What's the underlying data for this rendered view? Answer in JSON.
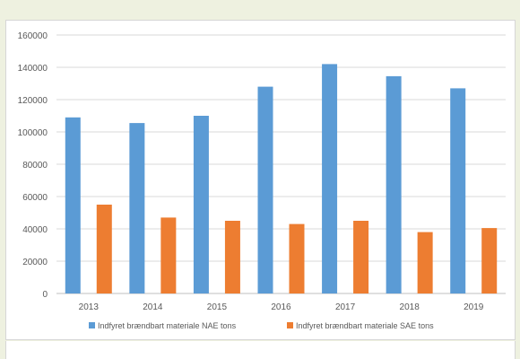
{
  "chart_data": {
    "type": "bar",
    "categories": [
      "2013",
      "2014",
      "2015",
      "2016",
      "2017",
      "2018",
      "2019"
    ],
    "series": [
      {
        "name": "Indfyret brændbart materiale NAE tons",
        "color": "#5b9bd5",
        "values": [
          109000,
          105500,
          110000,
          128000,
          142000,
          134500,
          127000
        ]
      },
      {
        "name": "Indfyret brændbart materiale SAE tons",
        "color": "#ed7d31",
        "values": [
          55000,
          47000,
          45000,
          43000,
          45000,
          38000,
          40500
        ]
      }
    ],
    "yticks": [
      0,
      20000,
      40000,
      60000,
      80000,
      100000,
      120000,
      140000,
      160000
    ],
    "ylim": [
      0,
      160000
    ],
    "grid": true,
    "legend_position": "bottom",
    "title": "",
    "xlabel": "",
    "ylabel": ""
  }
}
